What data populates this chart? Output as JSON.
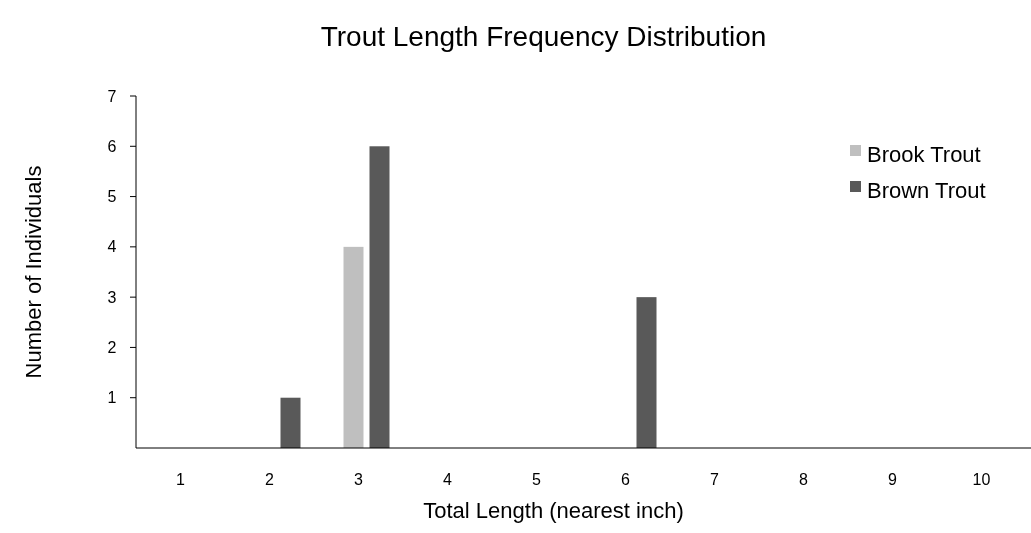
{
  "chart_data": {
    "type": "bar",
    "title": "Trout Length Frequency Distribution",
    "xlabel": "Total Length (nearest inch)",
    "ylabel": "Number of Individuals",
    "categories": [
      "1",
      "2",
      "3",
      "4",
      "5",
      "6",
      "7",
      "8",
      "9",
      "10"
    ],
    "series": [
      {
        "name": "Brook Trout",
        "color": "#bfbfbf",
        "values": [
          0,
          0,
          4,
          0,
          0,
          0,
          0,
          0,
          0,
          0
        ]
      },
      {
        "name": "Brown Trout",
        "color": "#595959",
        "values": [
          0,
          1,
          6,
          0,
          0,
          3,
          0,
          0,
          0,
          0
        ]
      }
    ],
    "ylim": [
      0,
      7
    ],
    "yticks": [
      1,
      2,
      3,
      4,
      5,
      6,
      7
    ],
    "grid": false,
    "legend": "top right"
  }
}
